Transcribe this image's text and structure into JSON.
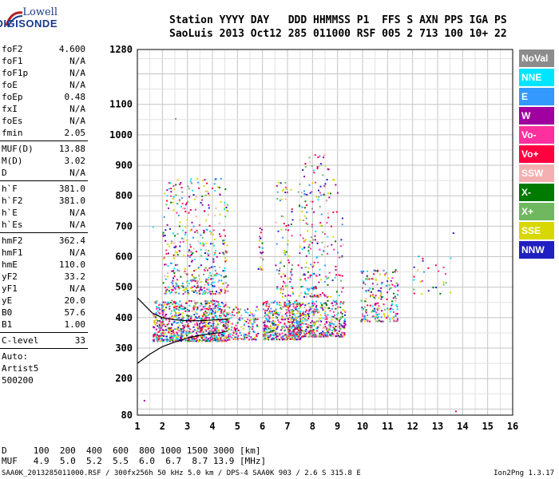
{
  "logo": {
    "line1": "Lowell",
    "line2": "DIGISONDE"
  },
  "header": {
    "row1": "Station YYYY DAY   DDD HHMMSS P1  FFS S AXN PPS IGA PS",
    "row2": "SaoLuis 2013 Oct12 285 011000 RSF 005 2 713 100 10+ 22"
  },
  "params": {
    "group1": [
      {
        "label": "foF2",
        "value": "4.600"
      },
      {
        "label": "foF1",
        "value": "N/A"
      },
      {
        "label": "foF1p",
        "value": "N/A"
      },
      {
        "label": "foE",
        "value": "N/A"
      },
      {
        "label": "foEp",
        "value": "0.48"
      },
      {
        "label": "fxI",
        "value": "N/A"
      },
      {
        "label": "foEs",
        "value": "N/A"
      },
      {
        "label": "fmin",
        "value": "2.05"
      }
    ],
    "group2": [
      {
        "label": "MUF(D)",
        "value": "13.88"
      },
      {
        "label": "M(D)",
        "value": "3.02"
      },
      {
        "label": "D",
        "value": "N/A"
      }
    ],
    "group3": [
      {
        "label": "h`F",
        "value": "381.0"
      },
      {
        "label": "h`F2",
        "value": "381.0"
      },
      {
        "label": "h`E",
        "value": "N/A"
      },
      {
        "label": "h`Es",
        "value": "N/A"
      }
    ],
    "group4": [
      {
        "label": "hmF2",
        "value": "362.4"
      },
      {
        "label": "hmF1",
        "value": "N/A"
      },
      {
        "label": "hmE",
        "value": "110.0"
      },
      {
        "label": "yF2",
        "value": "33.2"
      },
      {
        "label": "yF1",
        "value": "N/A"
      },
      {
        "label": "yE",
        "value": "20.0"
      },
      {
        "label": "B0",
        "value": "57.6"
      },
      {
        "label": "B1",
        "value": "1.00"
      }
    ],
    "group5": [
      {
        "label": "C-level",
        "value": "33"
      }
    ],
    "auto": [
      "Auto:",
      "Artist5",
      "500200"
    ]
  },
  "legend": [
    {
      "label": "NoVal",
      "color": "#8c8c8c"
    },
    {
      "label": "NNE",
      "color": "#00e5ff"
    },
    {
      "label": "E",
      "color": "#3399ff"
    },
    {
      "label": "W",
      "color": "#a000a0"
    },
    {
      "label": "Vo-",
      "color": "#ff2f9e"
    },
    {
      "label": "Vo+",
      "color": "#ff0040"
    },
    {
      "label": "SSW",
      "color": "#f4b0b0"
    },
    {
      "label": "X-",
      "color": "#007a00"
    },
    {
      "label": "X+",
      "color": "#6fb860"
    },
    {
      "label": "SSE",
      "color": "#d8d800"
    },
    {
      "label": "NNW",
      "color": "#2020c0"
    }
  ],
  "muf_table": {
    "row1": "D     100  200  400  600  800 1000 1500 3000 [km]",
    "row2": "MUF   4.9  5.0  5.2  5.5  6.0  6.7  8.7 13.9 [MHz]"
  },
  "footer": {
    "left": "SAA0K_2013285011000.RSF / 300fx256h 50 kHz 5.0 km / DPS-4 SAA0K 903 / 2.6 S 315.8 E",
    "right": "Ion2Png 1.3.17"
  },
  "chart_data": {
    "type": "scatter",
    "xlim": [
      1,
      16
    ],
    "ylim": [
      80,
      1280
    ],
    "xticks": [
      1,
      2,
      3,
      4,
      5,
      6,
      7,
      8,
      9,
      10,
      11,
      12,
      13,
      14,
      15,
      16
    ],
    "yticks": [
      80,
      200,
      300,
      400,
      500,
      600,
      700,
      800,
      900,
      1000,
      1100,
      1280
    ],
    "grid": true,
    "legend_position": "right",
    "trace_curve": [
      [
        1.0,
        250
      ],
      [
        1.5,
        280
      ],
      [
        2.0,
        305
      ],
      [
        2.5,
        320
      ],
      [
        3.0,
        333
      ],
      [
        3.5,
        342
      ],
      [
        4.0,
        348
      ],
      [
        4.3,
        350
      ],
      [
        4.6,
        356
      ]
    ],
    "trace_curve_upper": [
      [
        1.0,
        465
      ],
      [
        1.3,
        440
      ],
      [
        1.6,
        415
      ],
      [
        2.0,
        400
      ],
      [
        2.5,
        393
      ],
      [
        3.0,
        390
      ],
      [
        3.5,
        390
      ],
      [
        4.0,
        392
      ],
      [
        4.6,
        395
      ]
    ],
    "echo_clusters": [
      {
        "x": [
          1.6,
          4.6
        ],
        "y": [
          325,
          460
        ],
        "n": 900
      },
      {
        "x": [
          2.0,
          4.6
        ],
        "y": [
          480,
          860
        ],
        "n": 450
      },
      {
        "x": [
          4.6,
          5.8
        ],
        "y": [
          330,
          440
        ],
        "n": 150
      },
      {
        "x": [
          5.8,
          6.0
        ],
        "y": [
          560,
          720
        ],
        "n": 25
      },
      {
        "x": [
          6.0,
          7.5
        ],
        "y": [
          330,
          460
        ],
        "n": 350
      },
      {
        "x": [
          6.5,
          7.2
        ],
        "y": [
          470,
          860
        ],
        "n": 90
      },
      {
        "x": [
          7.0,
          9.3
        ],
        "y": [
          340,
          460
        ],
        "n": 500
      },
      {
        "x": [
          7.4,
          8.6
        ],
        "y": [
          470,
          940
        ],
        "n": 200
      },
      {
        "x": [
          8.6,
          9.2
        ],
        "y": [
          470,
          900
        ],
        "n": 40
      },
      {
        "x": [
          9.9,
          11.4
        ],
        "y": [
          390,
          560
        ],
        "n": 200
      },
      {
        "x": [
          12.0,
          13.5
        ],
        "y": [
          480,
          620
        ],
        "n": 25
      }
    ],
    "scattered_points": [
      [
        1.25,
        130
      ],
      [
        1.6,
        700
      ],
      [
        2.5,
        1055
      ],
      [
        13.6,
        680
      ],
      [
        13.7,
        95
      ],
      [
        13.0,
        555
      ],
      [
        12.6,
        565
      ]
    ]
  }
}
